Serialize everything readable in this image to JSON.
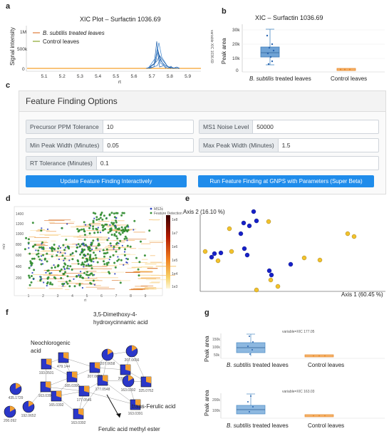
{
  "panel_letters": [
    "a",
    "b",
    "c",
    "d",
    "e",
    "f",
    "g"
  ],
  "panel_a": {
    "title": "XIC  Plot – Surfactin 1036.69",
    "ylabel": "Signal intensity",
    "xlabel": "rt",
    "yticks": [
      "1M",
      "500k",
      "0"
    ],
    "xticks": [
      "5.1",
      "5.2",
      "5.3",
      "5.4",
      "5.5",
      "5.6",
      "5.7",
      "5.8",
      "5.9"
    ],
    "side_label": "variable XIC 1036.69",
    "legend": [
      "B. subtilis treated leaves",
      "Control leaves"
    ],
    "colors": {
      "treated": "#1f5fa8",
      "control": "#f5a02a",
      "accent_legend": "#e07b39",
      "control_legend": "#8aa62d"
    }
  },
  "panel_b": {
    "title": "XIC – Surfactin 1036.69",
    "ylabel": "Peak area",
    "yticks": [
      "30k",
      "20k",
      "10k",
      "0"
    ],
    "categories": [
      "B. subtilis treated leaves",
      "Control leaves"
    ]
  },
  "panel_c": {
    "header": "Feature Finding Options",
    "fields": {
      "ppm": {
        "label": "Precursor PPM Tolerance",
        "value": "10"
      },
      "noise": {
        "label": "MS1 Noise Level",
        "value": "50000"
      },
      "minpw": {
        "label": "Min Peak Width (Minutes)",
        "value": "0.05"
      },
      "maxpw": {
        "label": "Max Peak Width (Minutes)",
        "value": "1.5"
      },
      "rt": {
        "label": "RT Tolerance (Minutes)",
        "value": "0.1"
      }
    },
    "buttons": {
      "update": "Update Feature Finding Interactively",
      "gnps": "Run Feature Finding at GNPS with Parameters (Super Beta)"
    }
  },
  "panel_d": {
    "yticks": [
      "1400",
      "1200",
      "1000",
      "800",
      "600",
      "400",
      "200"
    ],
    "xticks": [
      "1",
      "2",
      "3",
      "4",
      "5",
      "6",
      "7",
      "8",
      "9"
    ],
    "xlabel": "rt",
    "ylabel": "m/z",
    "legend": [
      "MS2s",
      "Feature Detection"
    ],
    "colorbar_ticks": [
      "1e8",
      "1e7",
      "1e6",
      "1e5",
      "1e4",
      "1e3"
    ]
  },
  "panel_e": {
    "axis2": "Axis 2  (16.10 %)",
    "axis1": "Axis 1  (60.45 %)"
  },
  "panel_f": {
    "labels": {
      "dimethoxy": "3,5-Dimethoxy-4-\nhydroxycinnamic acid",
      "neochlorogenic": "Neochlorogenic\nacid",
      "ferulic": "trans-Ferulic acid",
      "ester": "Ferulic acid methyl ester"
    },
    "node_labels": [
      "435.1729",
      "200.092",
      "192.0652",
      "193.0501",
      "163.0391",
      "165.0392",
      "163.0392",
      "177.0546",
      "177.0548",
      "165.0390",
      "207.0655",
      "207.0658",
      "209.0812",
      "325.0762",
      "479.144",
      "163.0391",
      "207.0656",
      "163.0392"
    ]
  },
  "panel_g": {
    "ylabel": "Peak area",
    "top": {
      "title": "variable=XIC 177.05",
      "yticks": [
        "150k",
        "100k",
        "50k"
      ]
    },
    "bottom": {
      "title": "variable=XIC 163.03",
      "yticks": [
        "200k",
        "100k"
      ]
    },
    "categories": [
      "B. subtilis treated leaves",
      "Control leaves"
    ]
  }
}
